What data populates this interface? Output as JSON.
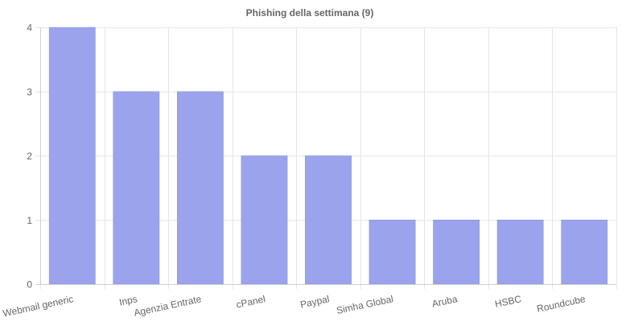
{
  "chart_data": {
    "type": "bar",
    "title": "Phishing della settimana (9)",
    "xlabel": "",
    "ylabel": "",
    "categories": [
      "Webmail generic",
      "Inps",
      "Agenzia Entrate",
      "cPanel",
      "Paypal",
      "Simha Global",
      "Aruba",
      "HSBC",
      "Roundcube"
    ],
    "values": [
      4,
      3,
      3,
      2,
      2,
      1,
      1,
      1,
      1
    ],
    "ylim": [
      0,
      4
    ],
    "yticks": [
      "0",
      "1",
      "2",
      "3",
      "4"
    ],
    "grid": true,
    "legend": "none",
    "bar_color": "#9aa3ec",
    "bar_border_color": "#8790e2"
  }
}
